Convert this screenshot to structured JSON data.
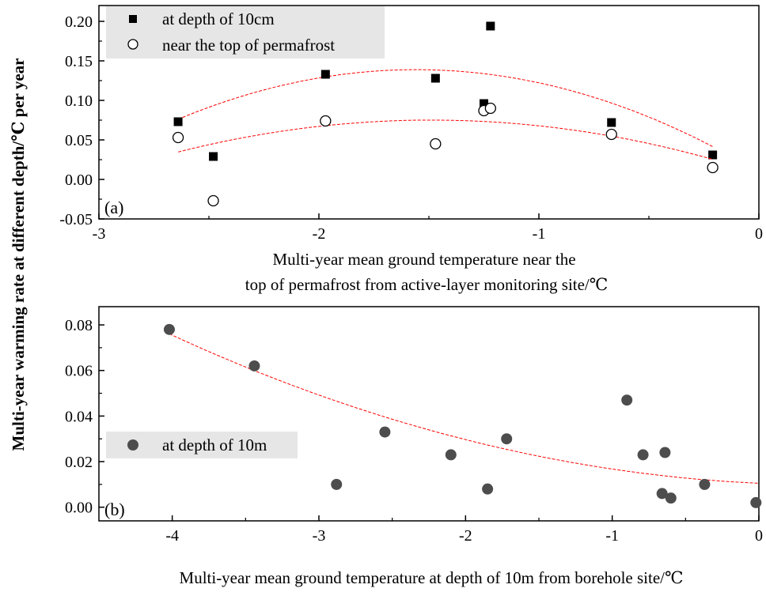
{
  "figure": {
    "ylabel": "Multi-year warming rate at different depth/℃ per year"
  },
  "chart_data": [
    {
      "type": "scatter",
      "panel_label": "(a)",
      "xlabel_line1": "Multi-year mean ground temperature near the",
      "xlabel_line2": "top of permafrost from active-layer monitoring site/℃",
      "xlim": [
        -3,
        0
      ],
      "ylim": [
        -0.05,
        0.22
      ],
      "xticks": [
        -3,
        -2,
        -1,
        0
      ],
      "xtick_labels": [
        "-3",
        "-2",
        "-1",
        "0"
      ],
      "yticks": [
        -0.05,
        0.0,
        0.05,
        0.1,
        0.15,
        0.2
      ],
      "ytick_labels": [
        "-0.05",
        "0.00",
        "0.05",
        "0.10",
        "0.15",
        "0.20"
      ],
      "legend_position": "top-left",
      "series": [
        {
          "name": "at depth of 10cm",
          "marker": "filled-square",
          "color": "#000000",
          "points": [
            [
              -2.64,
              0.073
            ],
            [
              -2.48,
              0.029
            ],
            [
              -1.97,
              0.133
            ],
            [
              -1.47,
              0.128
            ],
            [
              -1.25,
              0.096
            ],
            [
              -1.22,
              0.194
            ],
            [
              -0.67,
              0.072
            ],
            [
              -0.21,
              0.031
            ]
          ],
          "fit": {
            "color": "#ff0000",
            "x_range": [
              -2.64,
              -0.21
            ],
            "coeffs": [
              -0.0536,
              -0.167,
              0.0088
            ]
          }
        },
        {
          "name": "near the top of permafrost",
          "marker": "open-circle",
          "color": "#000000",
          "points": [
            [
              -2.64,
              0.053
            ],
            [
              -2.48,
              -0.027
            ],
            [
              -1.97,
              0.074
            ],
            [
              -1.47,
              0.045
            ],
            [
              -1.25,
              0.087
            ],
            [
              -1.22,
              0.09
            ],
            [
              -0.67,
              0.057
            ],
            [
              -0.21,
              0.015
            ]
          ],
          "fit": {
            "color": "#ff0000",
            "x_range": [
              -2.64,
              -0.21
            ],
            "coeffs": [
              -0.0304,
              -0.0905,
              0.0077
            ]
          }
        }
      ]
    },
    {
      "type": "scatter",
      "panel_label": "(b)",
      "xlabel_line1": "Multi-year mean ground temperature at depth of 10m from borehole site/℃",
      "xlim": [
        -4.5,
        0
      ],
      "ylim": [
        -0.006,
        0.088
      ],
      "xticks": [
        -4,
        -3,
        -2,
        -1,
        0
      ],
      "xtick_labels": [
        "-4",
        "-3",
        "-2",
        "-1",
        "0"
      ],
      "yticks": [
        0.0,
        0.02,
        0.04,
        0.06,
        0.08
      ],
      "ytick_labels": [
        "0.00",
        "0.02",
        "0.04",
        "0.06",
        "0.08"
      ],
      "legend_position": "middle-left",
      "series": [
        {
          "name": "at depth of 10m",
          "marker": "filled-circle",
          "color": "#4d4d4d",
          "points": [
            [
              -4.02,
              0.078
            ],
            [
              -3.44,
              0.062
            ],
            [
              -2.88,
              0.01
            ],
            [
              -2.55,
              0.033
            ],
            [
              -2.1,
              0.023
            ],
            [
              -1.85,
              0.008
            ],
            [
              -1.72,
              0.03
            ],
            [
              -0.9,
              0.047
            ],
            [
              -0.79,
              0.023
            ],
            [
              -0.66,
              0.006
            ],
            [
              -0.64,
              0.024
            ],
            [
              -0.6,
              0.004
            ],
            [
              -0.37,
              0.01
            ],
            [
              -0.02,
              0.002
            ]
          ],
          "fit": {
            "color": "#ff0000",
            "x_range": [
              -4.02,
              0.0
            ],
            "coeffs": [
              0.00333,
              -0.00292,
              0.0105
            ]
          }
        }
      ]
    }
  ]
}
